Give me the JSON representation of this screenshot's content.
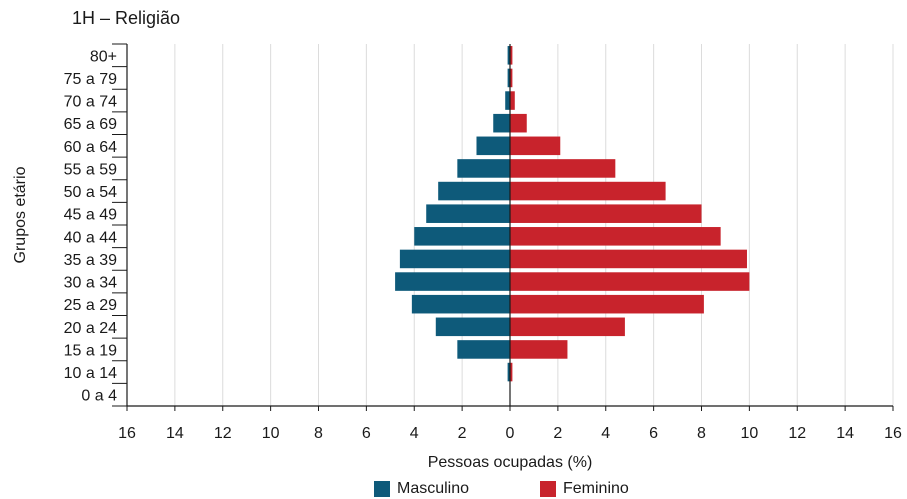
{
  "chart_data": {
    "type": "bar",
    "orientation": "horizontal-pyramid",
    "title": "1H – Religião",
    "xlabel": "Pessoas ocupadas (%)",
    "ylabel": "Grupos etário",
    "xlim": [
      -16,
      16
    ],
    "x_ticks": [
      "16",
      "14",
      "12",
      "10",
      "8",
      "6",
      "4",
      "2",
      "0",
      "2",
      "4",
      "6",
      "8",
      "10",
      "12",
      "14",
      "16"
    ],
    "grid": true,
    "categories": [
      "80+",
      "75 a 79",
      "70 a 74",
      "65 a 69",
      "60 a 64",
      "55 a 59",
      "50 a 54",
      "45 a 49",
      "40 a 44",
      "35 a 39",
      "30 a 34",
      "25 a 29",
      "20 a 24",
      "15 a 19",
      "10 a 14",
      "0 a 4"
    ],
    "series": [
      {
        "name": "Masculino",
        "color": "#0e5a7a",
        "values": [
          0.1,
          0.1,
          0.2,
          0.7,
          1.4,
          2.2,
          3.0,
          3.5,
          4.0,
          4.6,
          4.8,
          4.1,
          3.1,
          2.2,
          0.1,
          0
        ]
      },
      {
        "name": "Feminino",
        "color": "#c8232c",
        "values": [
          0.1,
          0.1,
          0.2,
          0.7,
          2.1,
          4.4,
          6.5,
          8.0,
          8.8,
          9.9,
          10.0,
          8.1,
          4.8,
          2.4,
          0.1,
          0
        ]
      }
    ],
    "legend_position": "bottom"
  }
}
